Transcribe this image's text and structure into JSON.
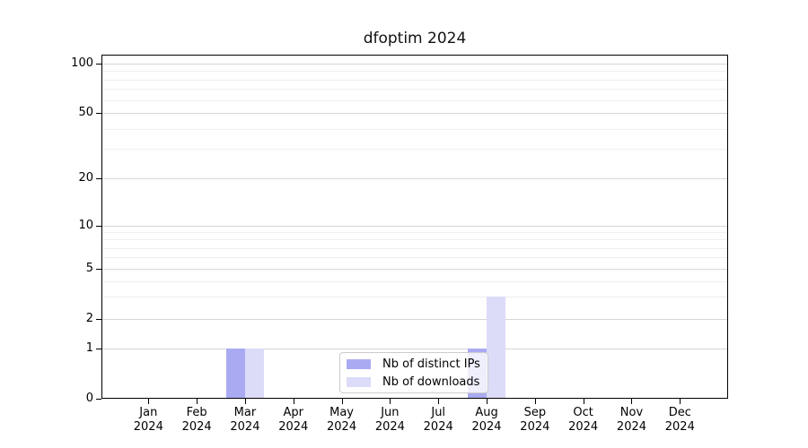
{
  "title": "dfoptim 2024",
  "chart_data": {
    "type": "bar",
    "title": "dfoptim 2024",
    "categories": [
      "Jan 2024",
      "Feb 2024",
      "Mar 2024",
      "Apr 2024",
      "May 2024",
      "Jun 2024",
      "Jul 2024",
      "Aug 2024",
      "Sep 2024",
      "Oct 2024",
      "Nov 2024",
      "Dec 2024"
    ],
    "x": {
      "months": [
        "Jan",
        "Feb",
        "Mar",
        "Apr",
        "May",
        "Jun",
        "Jul",
        "Aug",
        "Sep",
        "Oct",
        "Nov",
        "Dec"
      ],
      "year": "2024"
    },
    "y_axis": {
      "scale": "log-like (symlog)",
      "major_ticks": [
        0,
        1,
        2,
        5,
        10,
        20,
        50,
        100
      ],
      "minor_ticks": [
        3,
        4,
        6,
        7,
        8,
        9,
        30,
        40,
        60,
        70,
        80,
        90
      ],
      "range": [
        0,
        105
      ],
      "grid": "on"
    },
    "series": [
      {
        "name": "Nb of distinct IPs",
        "color": "#aaaaf2",
        "values": [
          0,
          0,
          1,
          0,
          0,
          0,
          0,
          1,
          0,
          0,
          0,
          0
        ]
      },
      {
        "name": "Nb of downloads",
        "color": "#dcdcf8",
        "values": [
          0,
          0,
          1,
          0,
          0,
          0,
          0,
          3,
          0,
          0,
          0,
          0
        ]
      }
    ],
    "legend": {
      "position": "lower center",
      "frame_alpha": 0.8
    }
  },
  "colors": {
    "bar_distinct_ips": "#aaaaf2",
    "bar_downloads": "#dcdcf8",
    "grid_major": "#d6d6d6",
    "grid_minor": "#efefef",
    "spine": "#000000",
    "text": "#000000"
  }
}
